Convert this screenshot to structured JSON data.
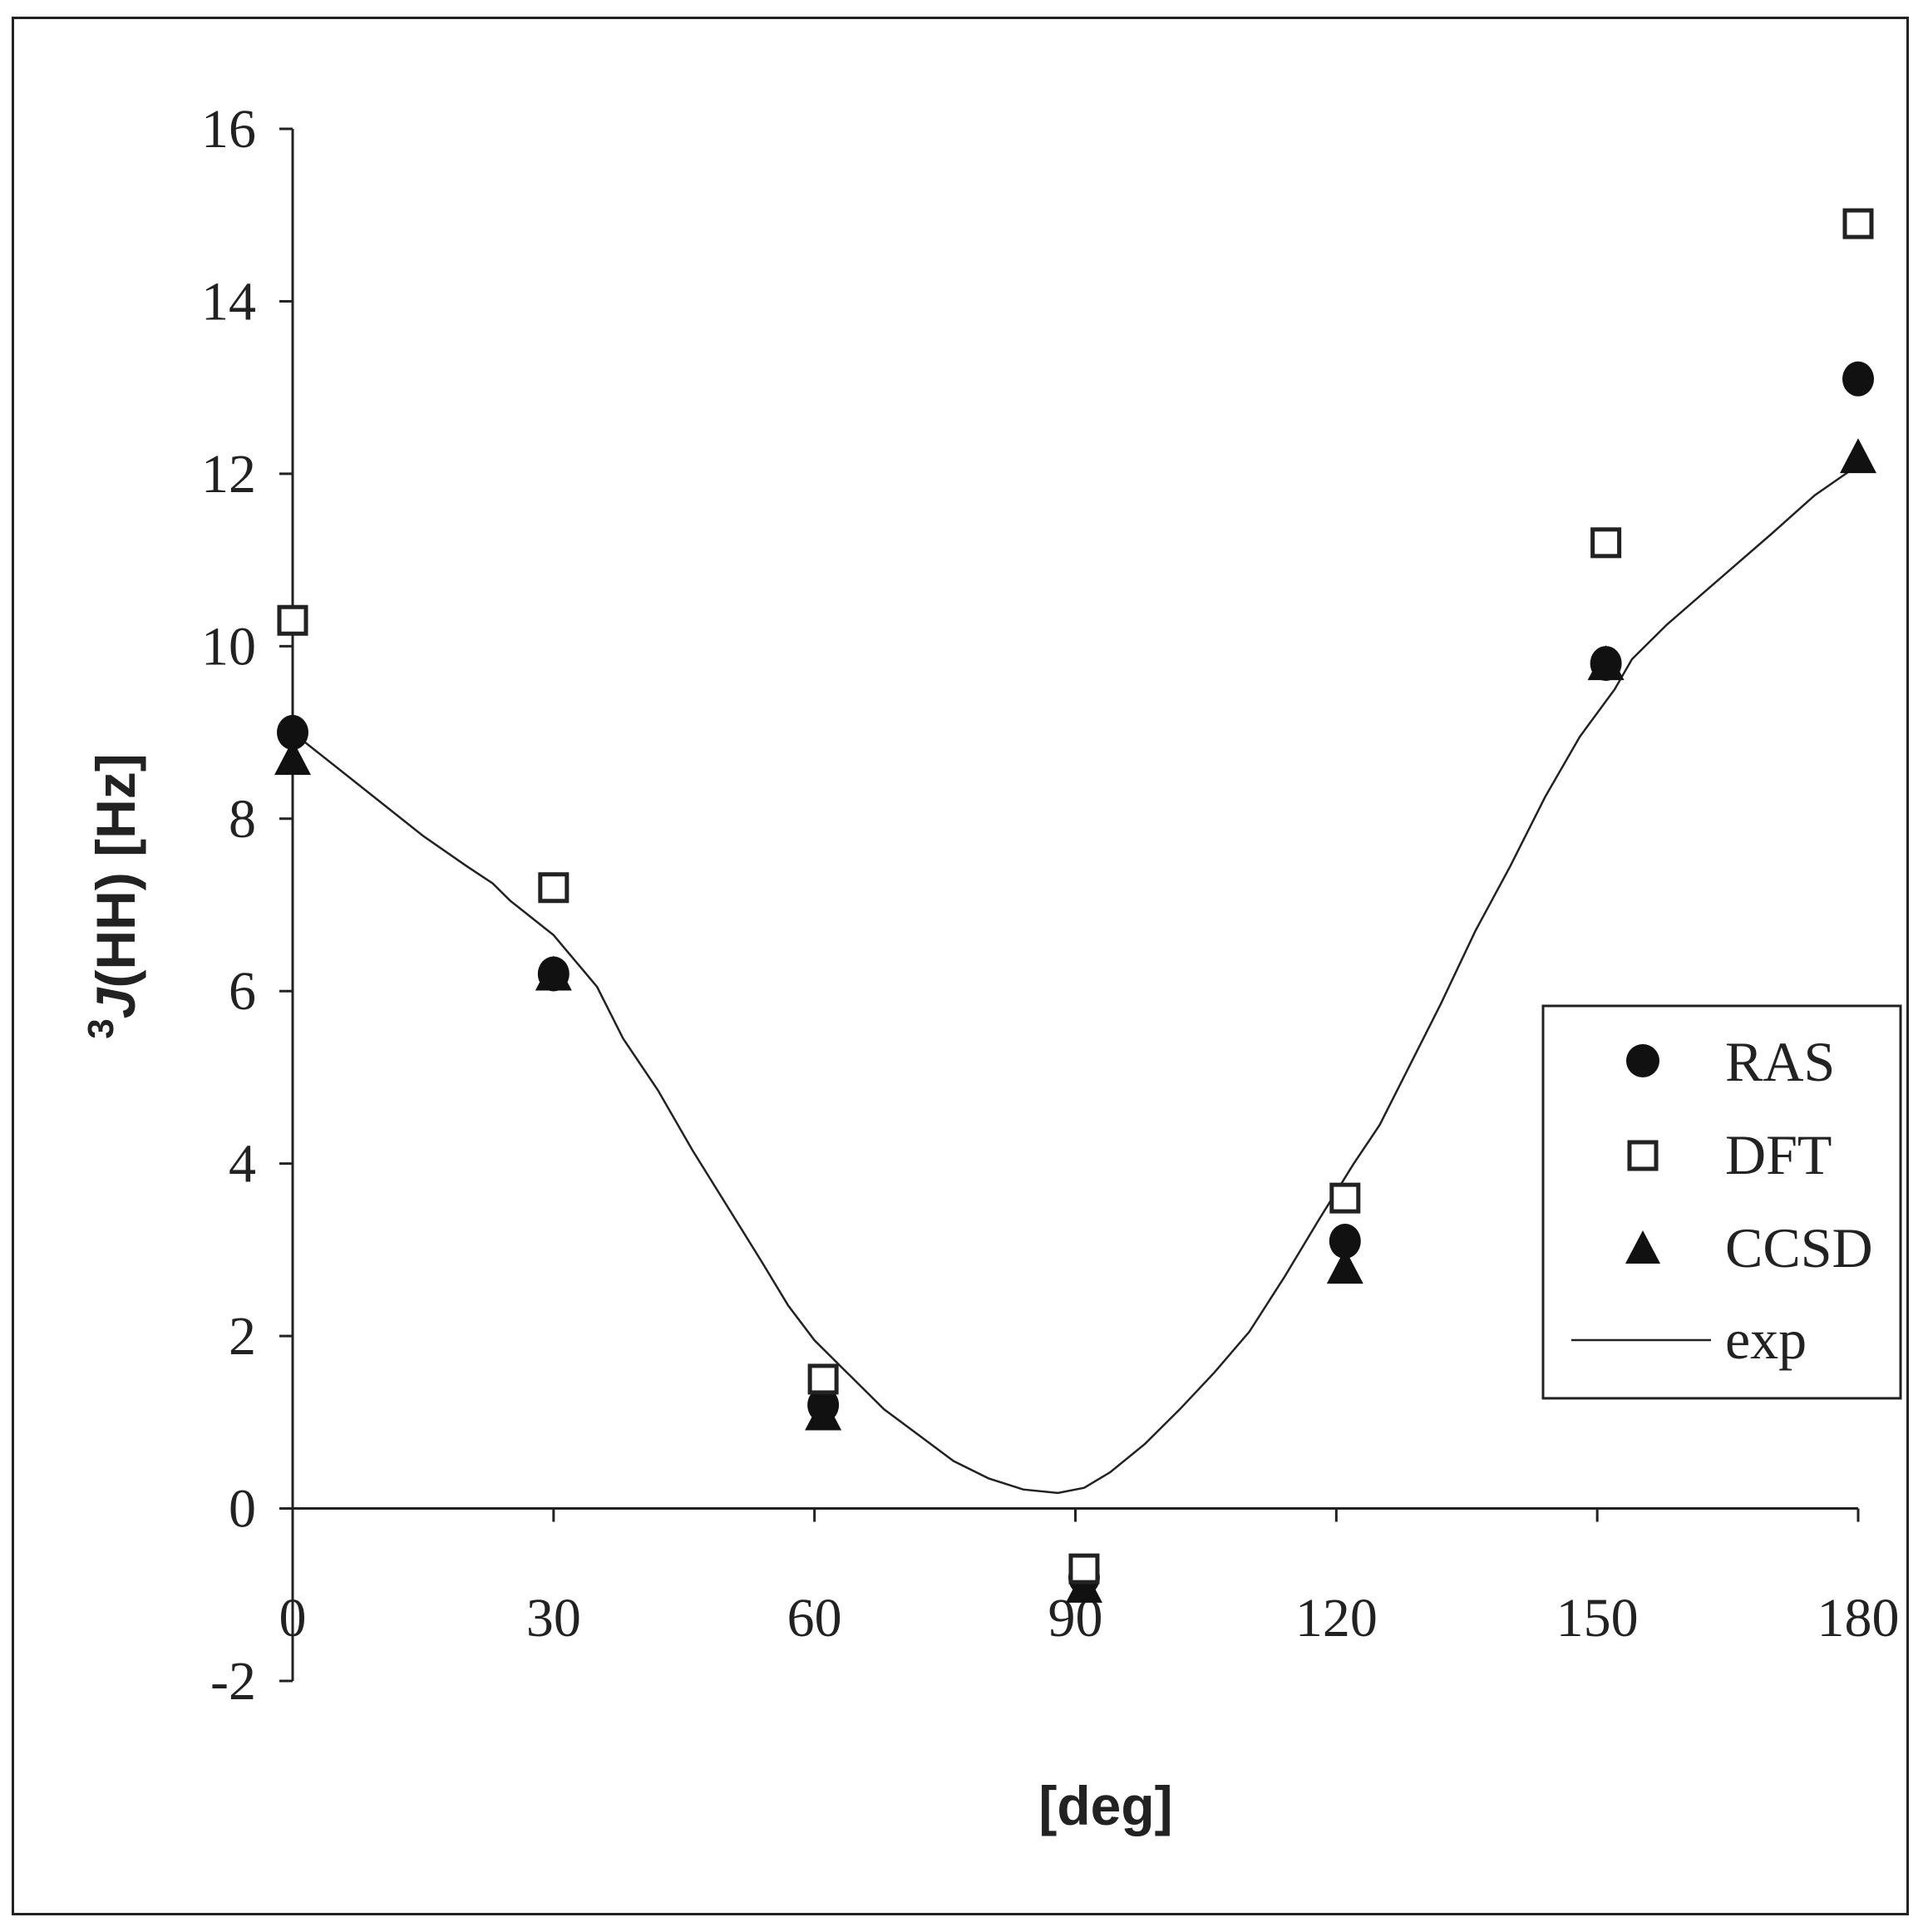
{
  "chart_data": {
    "type": "scatter",
    "title": "",
    "xlabel": "[deg]",
    "ylabel_sup": "3",
    "ylabel_italic": "J",
    "ylabel_rest": "(HH) [Hz]",
    "xlim": [
      0,
      180
    ],
    "ylim": [
      -2,
      16
    ],
    "xticks": [
      0,
      30,
      60,
      90,
      120,
      150,
      180
    ],
    "yticks": [
      -2,
      0,
      2,
      4,
      6,
      8,
      10,
      12,
      14,
      16
    ],
    "grid": false,
    "legend_position": "right",
    "series": [
      {
        "name": "RAS",
        "marker": "circle",
        "x": [
          0,
          30,
          61,
          91,
          121,
          151,
          180
        ],
        "y": [
          9.0,
          6.2,
          1.2,
          -0.8,
          3.1,
          9.8,
          13.1
        ]
      },
      {
        "name": "DFT",
        "marker": "open-square",
        "x": [
          0,
          30,
          61,
          91,
          121,
          151,
          180
        ],
        "y": [
          10.3,
          7.2,
          1.5,
          -0.7,
          3.6,
          11.2,
          14.9
        ]
      },
      {
        "name": "CCSD",
        "marker": "triangle",
        "x": [
          0,
          30,
          61,
          91,
          121,
          151,
          180
        ],
        "y": [
          8.7,
          6.2,
          1.1,
          -0.9,
          2.8,
          9.8,
          12.2
        ]
      },
      {
        "name": "exp",
        "marker": "line",
        "x": [
          0,
          5,
          10,
          15,
          20,
          23,
          25,
          30,
          35,
          38,
          42,
          46,
          50,
          54,
          57,
          60,
          64,
          68,
          72,
          76,
          80,
          84,
          88,
          91,
          94,
          98,
          102,
          106,
          110,
          114,
          118,
          122,
          125,
          128,
          132,
          136,
          140,
          144,
          148,
          152,
          154,
          158,
          162,
          166,
          170,
          175,
          180
        ],
        "y": [
          9.0,
          8.6,
          8.2,
          7.8,
          7.45,
          7.25,
          7.05,
          6.65,
          6.05,
          5.45,
          4.85,
          4.15,
          3.5,
          2.85,
          2.35,
          1.95,
          1.55,
          1.15,
          0.85,
          0.55,
          0.35,
          0.22,
          0.18,
          0.24,
          0.42,
          0.75,
          1.15,
          1.58,
          2.05,
          2.68,
          3.35,
          4.0,
          4.45,
          5.05,
          5.85,
          6.7,
          7.45,
          8.25,
          8.95,
          9.5,
          9.85,
          10.25,
          10.6,
          10.95,
          11.3,
          11.75,
          12.1
        ]
      }
    ],
    "legend": [
      "RAS",
      "DFT",
      "CCSD",
      "exp"
    ]
  }
}
